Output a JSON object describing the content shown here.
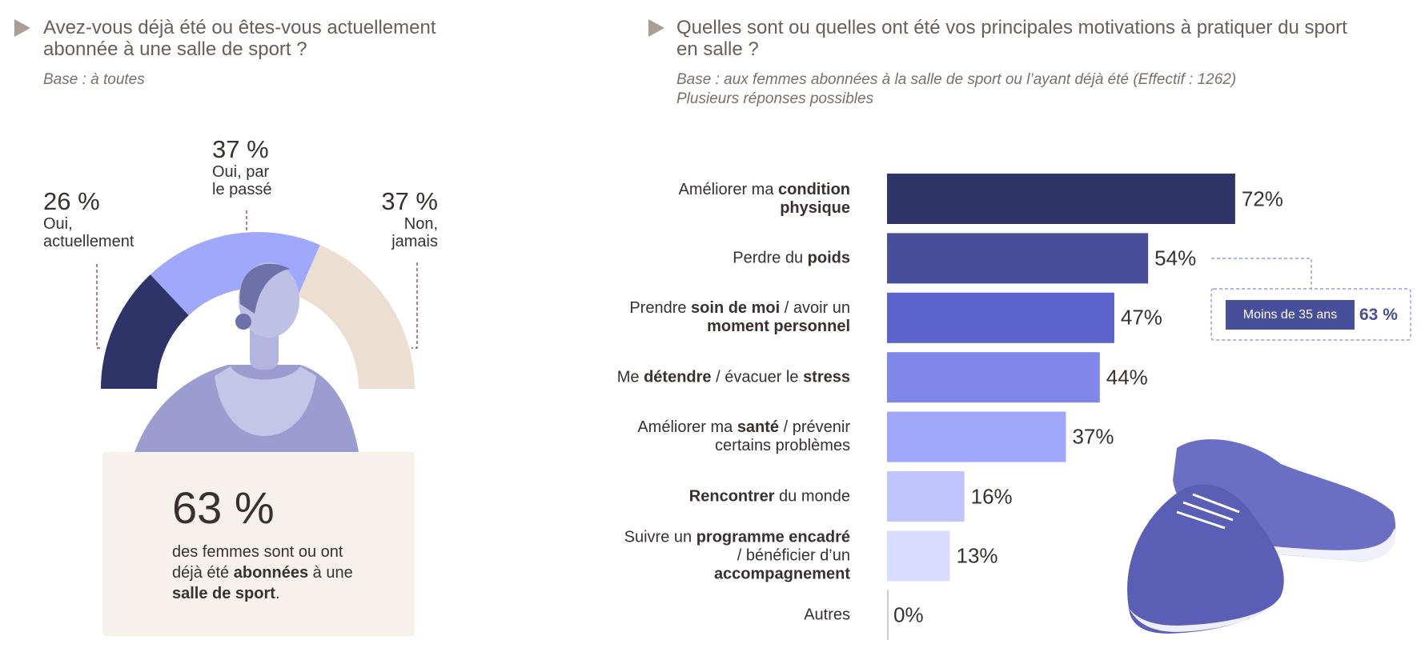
{
  "chart_data": [
    {
      "type": "pie",
      "title": "Avez-vous déjà été ou êtes-vous actuellement abonnée à une salle de sport ?",
      "subtitle": "Base : à toutes",
      "categories": [
        "Oui, actuellement",
        "Oui, par le passé",
        "Non, jamais"
      ],
      "values": [
        26,
        37,
        37
      ],
      "value_labels": [
        "26 %",
        "37 %",
        "37 %"
      ],
      "colors": [
        "#2e3468",
        "#a0a8fb",
        "#ecdfd2"
      ],
      "callout": {
        "figure": "63 %",
        "text": [
          {
            "text": "des femmes sont ou ont déjà été "
          },
          {
            "text": "abonnées",
            "bold": true
          },
          {
            "text": " à une "
          },
          {
            "text": "salle de sport",
            "bold": true
          },
          {
            "text": "."
          }
        ]
      }
    },
    {
      "type": "hbar",
      "title": "Quelles sont ou quelles ont été vos principales motivations à pratiquer du sport en salle ?",
      "subtitle": [
        "Base : aux femmes abonnées à la salle de sport ou l’ayant déjà été (Effectif : 1262)",
        "Plusieurs réponses possibles"
      ],
      "categories": [
        [
          {
            "text": "Améliorer ma "
          },
          {
            "text": "condition physique",
            "bold": true
          }
        ],
        [
          {
            "text": "Perdre du "
          },
          {
            "text": "poids",
            "bold": true
          }
        ],
        [
          {
            "text": "Prendre "
          },
          {
            "text": "soin de moi",
            "bold": true
          },
          {
            "text": " / avoir un "
          },
          {
            "text": "moment personnel",
            "bold": true
          }
        ],
        [
          {
            "text": "Me "
          },
          {
            "text": "détendre",
            "bold": true
          },
          {
            "text": " / évacuer le "
          },
          {
            "text": "stress",
            "bold": true
          }
        ],
        [
          {
            "text": "Améliorer ma "
          },
          {
            "text": "santé",
            "bold": true
          },
          {
            "text": " / prévenir certains problèmes"
          }
        ],
        [
          {
            "text": "Rencontrer",
            "bold": true
          },
          {
            "text": " du monde"
          }
        ],
        [
          {
            "text": "Suivre un "
          },
          {
            "text": "programme encadré",
            "bold": true
          },
          {
            "text": " / bénéficier d’un "
          },
          {
            "text": "accompagnement",
            "bold": true
          }
        ],
        [
          {
            "text": "Autres"
          }
        ]
      ],
      "values": [
        72,
        54,
        47,
        44,
        37,
        16,
        13,
        0
      ],
      "value_labels": [
        "72%",
        "54%",
        "47%",
        "44%",
        "37%",
        "16%",
        "13%",
        "0%"
      ],
      "colors": [
        "#2e3468",
        "#474e9a",
        "#5b64cc",
        "#7f88e8",
        "#a0a8fb",
        "#c0c6fd",
        "#d9dcfe",
        "#cccccc"
      ],
      "xlim": [
        0,
        100
      ],
      "annotation": {
        "text": "Moins de 35 ans",
        "value_label": "63 %"
      }
    }
  ]
}
